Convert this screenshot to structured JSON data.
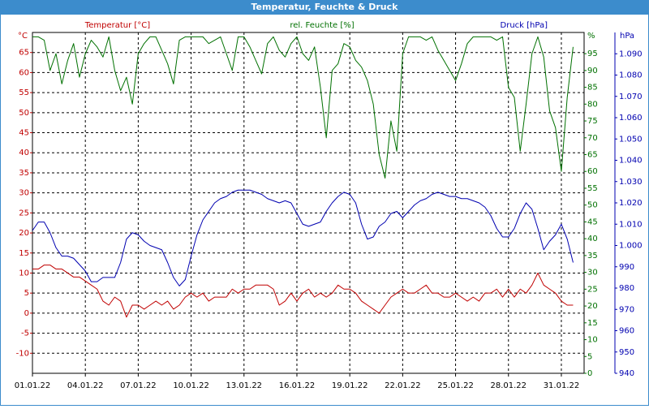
{
  "chart_data": {
    "type": "line",
    "title": "Temperatur, Feuchte & Druck",
    "categories": [
      "01.01.22",
      null,
      null,
      null,
      null,
      null,
      null,
      null,
      null,
      "04.01.22",
      null,
      null,
      null,
      null,
      null,
      null,
      null,
      null,
      "07.01.22",
      null,
      null,
      null,
      null,
      null,
      null,
      null,
      null,
      "10.01.22",
      null,
      null,
      null,
      null,
      null,
      null,
      null,
      null,
      "13.01.22",
      null,
      null,
      null,
      null,
      null,
      null,
      null,
      null,
      "16.01.22",
      null,
      null,
      null,
      null,
      null,
      null,
      null,
      null,
      "19.01.22",
      null,
      null,
      null,
      null,
      null,
      null,
      null,
      null,
      "22.01.22",
      null,
      null,
      null,
      null,
      null,
      null,
      null,
      null,
      "25.01.22",
      null,
      null,
      null,
      null,
      null,
      null,
      null,
      null,
      "28.01.22",
      null,
      null,
      null,
      null,
      null,
      null,
      null,
      null,
      "31.01.22",
      null,
      null
    ],
    "series": [
      {
        "name": "Temperatur [°C]",
        "color": "#c00000",
        "axis": "y",
        "values": [
          11,
          11,
          12,
          12,
          11,
          11,
          10,
          9,
          9,
          8,
          7,
          6,
          3,
          2,
          4,
          3,
          -1,
          2,
          2,
          1,
          2,
          3,
          2,
          3,
          1,
          2,
          4,
          5,
          4,
          5,
          3,
          4,
          4,
          4,
          6,
          5,
          6,
          6,
          7,
          7,
          7,
          6,
          2,
          3,
          5,
          3,
          5,
          6,
          4,
          5,
          4,
          5,
          7,
          6,
          6,
          5,
          3,
          2,
          1,
          0,
          2,
          4,
          5,
          6,
          5,
          5,
          6,
          7,
          5,
          5,
          4,
          4,
          5,
          4,
          3,
          4,
          3,
          5,
          5,
          6,
          4,
          6,
          4,
          6,
          5,
          7,
          10,
          7,
          6,
          5,
          3,
          2,
          2
        ]
      },
      {
        "name": "rel. Feuchte [%]",
        "color": "#007000",
        "axis": "y2",
        "values": [
          100,
          100,
          99,
          90,
          95,
          86,
          93,
          98,
          88,
          95,
          99,
          97,
          94,
          100,
          90,
          84,
          88,
          80,
          95,
          98,
          100,
          100,
          96,
          92,
          86,
          99,
          100,
          100,
          100,
          100,
          98,
          99,
          100,
          95,
          90,
          100,
          100,
          97,
          93,
          89,
          98,
          100,
          96,
          94,
          98,
          100,
          95,
          93,
          97,
          85,
          70,
          90,
          92,
          98,
          97,
          93,
          91,
          87,
          80,
          65,
          58,
          75,
          66,
          95,
          100,
          100,
          100,
          99,
          100,
          96,
          93,
          90,
          87,
          92,
          98,
          100,
          100,
          100,
          100,
          99,
          100,
          85,
          82,
          66,
          80,
          95,
          100,
          94,
          78,
          73,
          60,
          82,
          97
        ]
      },
      {
        "name": "Druck [hPa]",
        "color": "#0000b0",
        "axis": "y3",
        "values": [
          1007,
          1011,
          1011,
          1006,
          999,
          995,
          995,
          994,
          991,
          988,
          983,
          983,
          985,
          985,
          985,
          992,
          1003,
          1006,
          1005,
          1002,
          1000,
          999,
          998,
          992,
          985,
          981,
          984,
          995,
          1005,
          1012,
          1016,
          1020,
          1022,
          1023,
          1025,
          1026,
          1026,
          1026,
          1025,
          1024,
          1022,
          1021,
          1020,
          1021,
          1020,
          1015,
          1010,
          1009,
          1010,
          1011,
          1016,
          1020,
          1023,
          1025,
          1024,
          1020,
          1010,
          1003,
          1004,
          1009,
          1011,
          1015,
          1016,
          1013,
          1016,
          1019,
          1021,
          1022,
          1024,
          1025,
          1024,
          1023,
          1023,
          1022,
          1022,
          1021,
          1020,
          1018,
          1014,
          1008,
          1004,
          1004,
          1008,
          1015,
          1020,
          1017,
          1008,
          998,
          1002,
          1005,
          1010,
          1003,
          992
        ]
      }
    ],
    "y_unit": "°C",
    "y2_unit": "%",
    "y3_unit": "hPa",
    "ylim": [
      -15,
      70
    ],
    "yticks": [
      -10,
      -5,
      0,
      5,
      10,
      15,
      20,
      25,
      30,
      35,
      40,
      45,
      50,
      55,
      60,
      65
    ],
    "y2lim": [
      0,
      101.3
    ],
    "y2ticks": [
      0,
      5,
      10,
      15,
      20,
      25,
      30,
      35,
      40,
      45,
      50,
      55,
      60,
      65,
      70,
      75,
      80,
      85,
      90,
      95
    ],
    "y3lim": [
      940,
      1100
    ],
    "y3ticks": [
      940,
      950,
      960,
      970,
      980,
      990,
      {
        "value": 1000,
        "label": "1.000"
      },
      {
        "value": 1010,
        "label": "1.010"
      },
      {
        "value": 1020,
        "label": "1.020"
      },
      {
        "value": 1030,
        "label": "1.030"
      },
      {
        "value": 1040,
        "label": "1.040"
      },
      {
        "value": 1050,
        "label": "1.050"
      },
      {
        "value": 1060,
        "label": "1.060"
      },
      {
        "value": 1070,
        "label": "1.070"
      },
      {
        "value": 1080,
        "label": "1.080"
      },
      {
        "value": 1090,
        "label": "1.090"
      }
    ],
    "grid": true
  }
}
